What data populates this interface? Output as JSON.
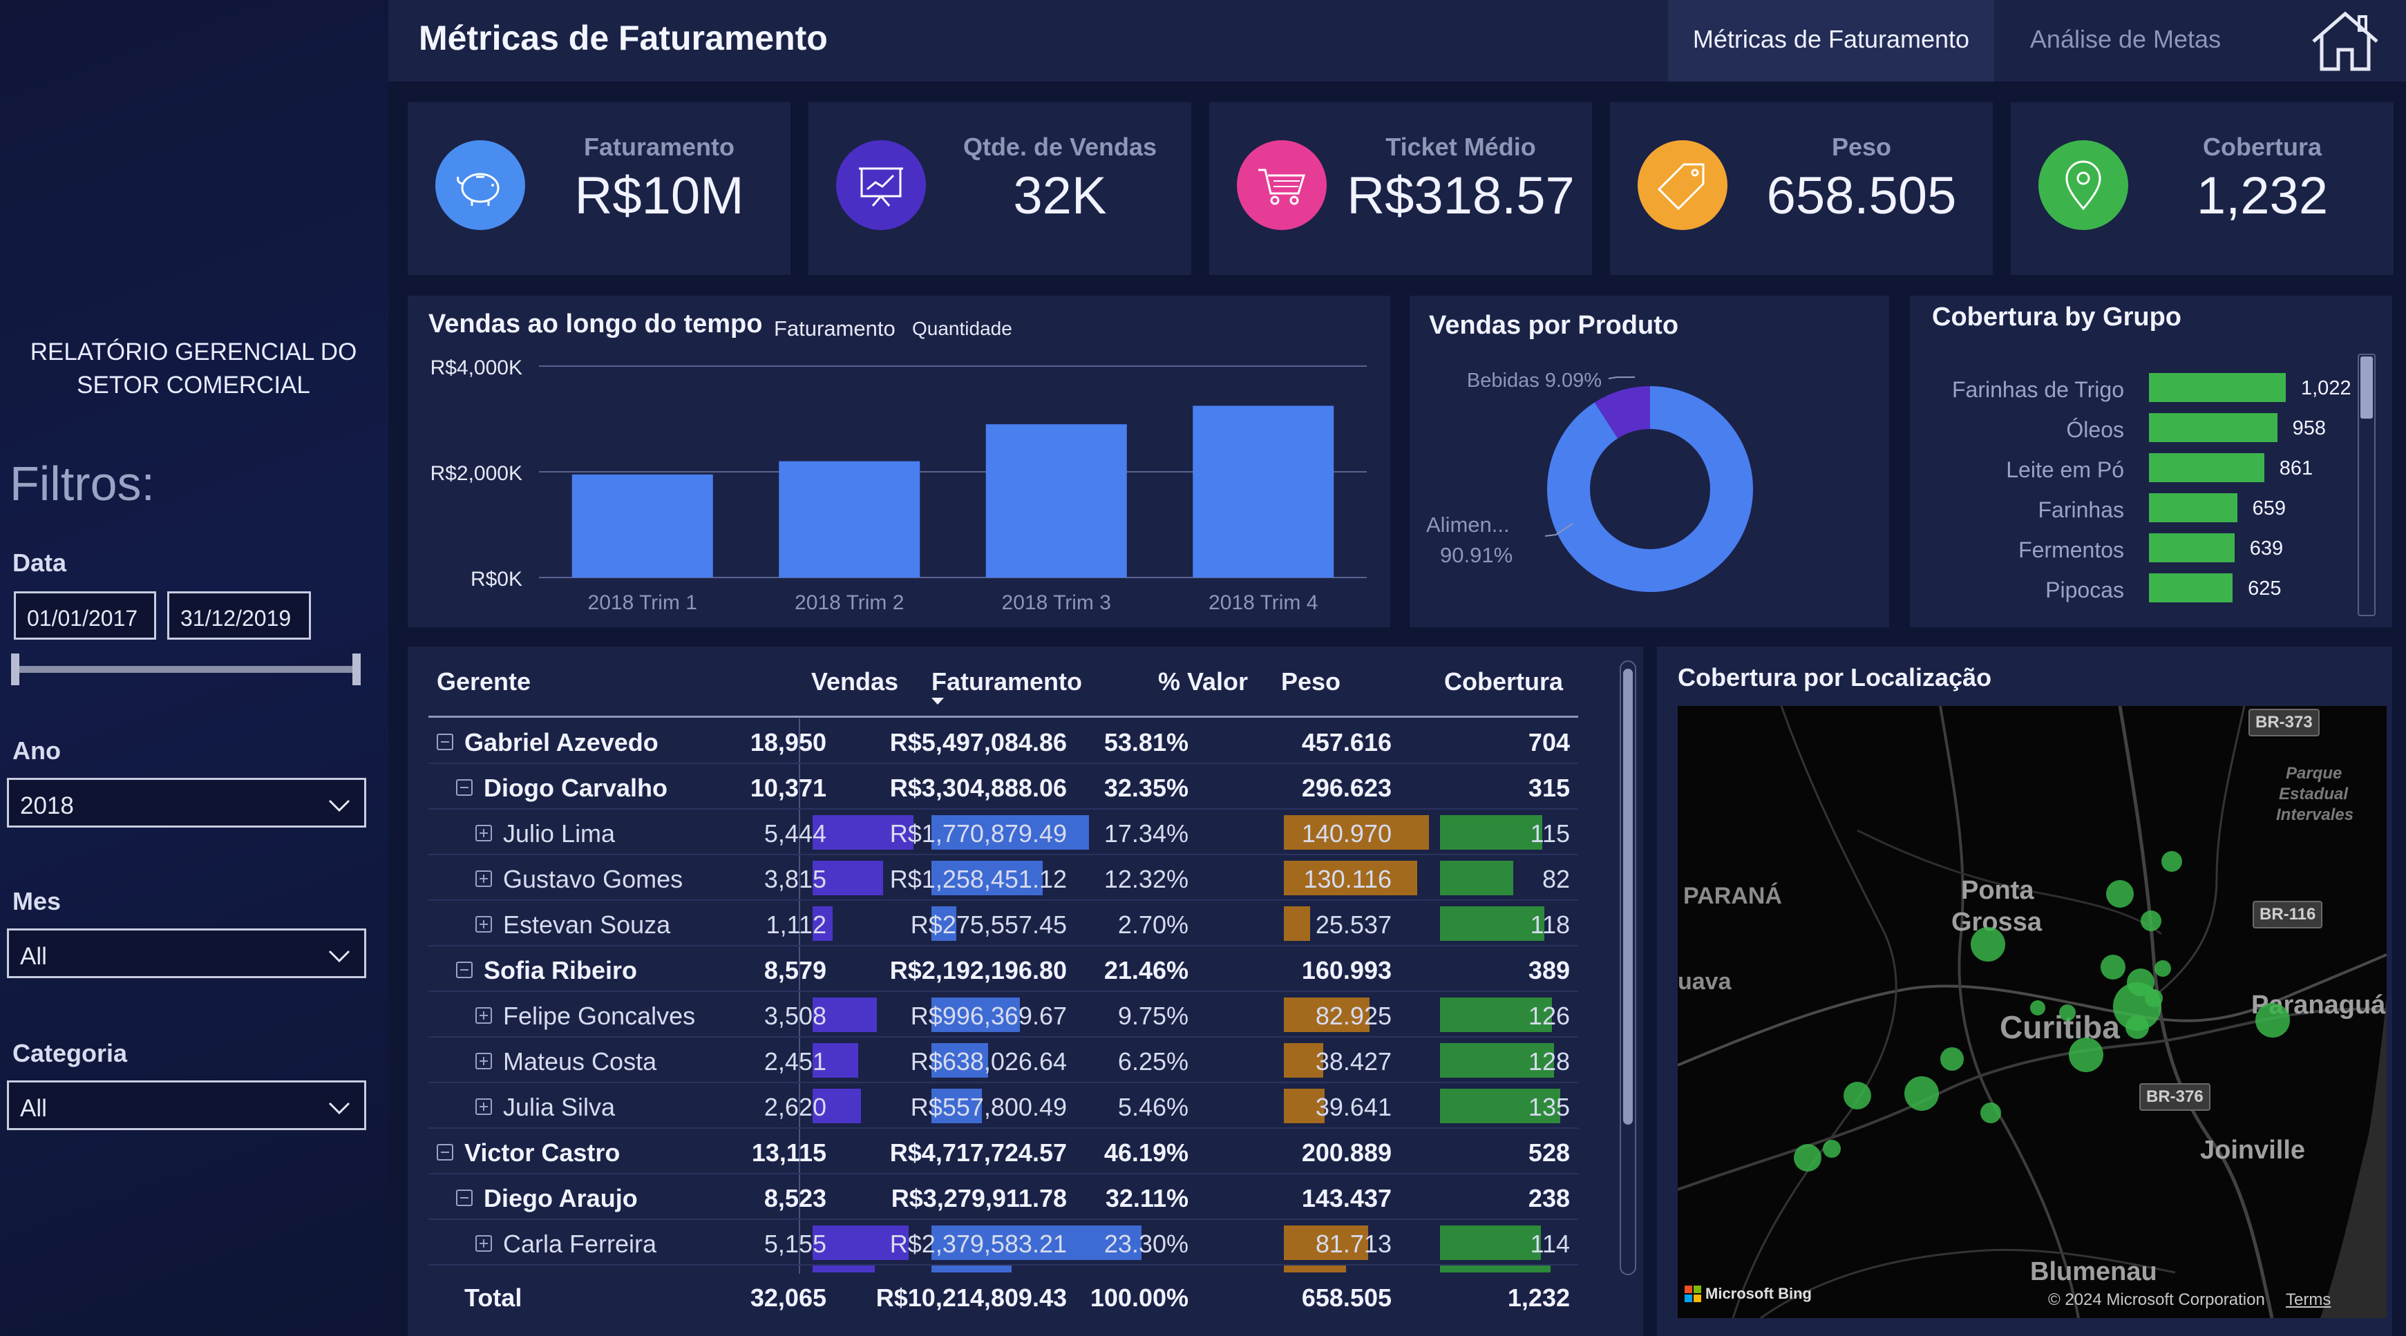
{
  "sidebar": {
    "report_title_line1": "RELATÓRIO GERENCIAL DO",
    "report_title_line2": "SETOR COMERCIAL",
    "filters_title": "Filtros:",
    "data_label": "Data",
    "date_start": "01/01/2017",
    "date_end": "31/12/2019",
    "ano_label": "Ano",
    "ano_value": "2018",
    "mes_label": "Mes",
    "mes_value": "All",
    "categoria_label": "Categoria",
    "categoria_value": "All"
  },
  "header": {
    "title": "Métricas de Faturamento",
    "tabs": [
      "Métricas de Faturamento",
      "Análise de Metas"
    ]
  },
  "kpis": [
    {
      "label": "Faturamento",
      "value": "R$10M",
      "icon": "piggy-bank-icon",
      "color": "#4a8df0"
    },
    {
      "label": "Qtde. de Vendas",
      "value": "32K",
      "icon": "presentation-chart-icon",
      "color": "#4b2fc4"
    },
    {
      "label": "Ticket Médio",
      "value": "R$318.57",
      "icon": "shopping-cart-icon",
      "color": "#e63c96"
    },
    {
      "label": "Peso",
      "value": "658.505",
      "icon": "price-tag-icon",
      "color": "#f2a531"
    },
    {
      "label": "Cobertura",
      "value": "1,232",
      "icon": "location-pin-icon",
      "color": "#3cb44b"
    }
  ],
  "vendas_tempo": {
    "title": "Vendas ao longo do tempo",
    "legend1": "Faturamento",
    "legend2": "Quantidade"
  },
  "chart_data": [
    {
      "type": "bar",
      "title": "Vendas ao longo do tempo",
      "categories": [
        "2018 Trim 1",
        "2018 Trim 2",
        "2018 Trim 3",
        "2018 Trim 4"
      ],
      "values": [
        1950,
        2200,
        2900,
        3250
      ],
      "yticks": [
        "R$0K",
        "R$2,000K",
        "R$4,000K"
      ],
      "ylim": [
        0,
        4000
      ],
      "color": "#4a7ff0"
    },
    {
      "type": "pie",
      "title": "Vendas por Produto",
      "labels": [
        "Bebidas",
        "Alimen..."
      ],
      "label_text": [
        "Bebidas 9.09%",
        "Alimen...",
        "90.91%"
      ],
      "values": [
        9.09,
        90.91
      ],
      "colors": [
        "#5a2fc9",
        "#4a7ff0"
      ]
    },
    {
      "type": "bar",
      "title": "Cobertura by Grupo",
      "categories": [
        "Farinhas de Trigo",
        "Óleos",
        "Leite em Pó",
        "Farinhas",
        "Fermentos",
        "Pipocas"
      ],
      "values": [
        1022,
        958,
        861,
        659,
        639,
        625
      ],
      "value_labels": [
        "1,022",
        "958",
        "861",
        "659",
        "639",
        "625"
      ],
      "color": "#3cb44b"
    }
  ],
  "vendas_produto": {
    "title": "Vendas por Produto"
  },
  "cobertura_grupo": {
    "title": "Cobertura by Grupo"
  },
  "table": {
    "headers": [
      "Gerente",
      "Vendas",
      "Faturamento",
      "% Valor",
      "Peso",
      "Cobertura"
    ],
    "rows": [
      {
        "level": 0,
        "name": "Gabriel Azevedo",
        "vendas": "18,950",
        "fat": "R$5,497,084.86",
        "pct": "53.81%",
        "peso": "457.616",
        "cob": "704"
      },
      {
        "level": 1,
        "name": "Diogo Carvalho",
        "vendas": "10,371",
        "fat": "R$3,304,888.06",
        "pct": "32.35%",
        "peso": "296.623",
        "cob": "315"
      },
      {
        "level": 2,
        "name": "Julio Lima",
        "vendas": "5,444",
        "fat": "R$1,770,879.49",
        "pct": "17.34%",
        "peso": "140.970",
        "cob": "115",
        "bar_vendas": 1.0,
        "bar_fat": 0.75,
        "bar_peso": 1.0,
        "bar_cob": 0.85
      },
      {
        "level": 2,
        "name": "Gustavo Gomes",
        "vendas": "3,815",
        "fat": "R$1,258,451.12",
        "pct": "12.32%",
        "peso": "130.116",
        "cob": "82",
        "bar_vendas": 0.7,
        "bar_fat": 0.53,
        "bar_peso": 0.92,
        "bar_cob": 0.61
      },
      {
        "level": 2,
        "name": "Estevan Souza",
        "vendas": "1,112",
        "fat": "R$275,557.45",
        "pct": "2.70%",
        "peso": "25.537",
        "cob": "118",
        "bar_vendas": 0.2,
        "bar_fat": 0.12,
        "bar_peso": 0.18,
        "bar_cob": 0.87
      },
      {
        "level": 1,
        "name": "Sofia Ribeiro",
        "vendas": "8,579",
        "fat": "R$2,192,196.80",
        "pct": "21.46%",
        "peso": "160.993",
        "cob": "389"
      },
      {
        "level": 2,
        "name": "Felipe Goncalves",
        "vendas": "3,508",
        "fat": "R$996,369.67",
        "pct": "9.75%",
        "peso": "82.925",
        "cob": "126",
        "bar_vendas": 0.64,
        "bar_fat": 0.42,
        "bar_peso": 0.59,
        "bar_cob": 0.93
      },
      {
        "level": 2,
        "name": "Mateus Costa",
        "vendas": "2,451",
        "fat": "R$638,026.64",
        "pct": "6.25%",
        "peso": "38.427",
        "cob": "128",
        "bar_vendas": 0.45,
        "bar_fat": 0.27,
        "bar_peso": 0.27,
        "bar_cob": 0.95
      },
      {
        "level": 2,
        "name": "Julia Silva",
        "vendas": "2,620",
        "fat": "R$557,800.49",
        "pct": "5.46%",
        "peso": "39.641",
        "cob": "135",
        "bar_vendas": 0.48,
        "bar_fat": 0.24,
        "bar_peso": 0.28,
        "bar_cob": 1.0
      },
      {
        "level": 0,
        "name": "Victor Castro",
        "vendas": "13,115",
        "fat": "R$4,717,724.57",
        "pct": "46.19%",
        "peso": "200.889",
        "cob": "528"
      },
      {
        "level": 1,
        "name": "Diego Araujo",
        "vendas": "8,523",
        "fat": "R$3,279,911.78",
        "pct": "32.11%",
        "peso": "143.437",
        "cob": "238"
      },
      {
        "level": 2,
        "name": "Carla Ferreira",
        "vendas": "5,155",
        "fat": "R$2,379,583.21",
        "pct": "23.30%",
        "peso": "81.713",
        "cob": "114",
        "bar_vendas": 0.95,
        "bar_fat": 1.0,
        "bar_peso": 0.58,
        "bar_cob": 0.84
      }
    ],
    "total": {
      "name": "Total",
      "vendas": "32,065",
      "fat": "R$10,214,809.43",
      "pct": "100.00%",
      "peso": "658.505",
      "cob": "1,232"
    }
  },
  "map": {
    "title": "Cobertura por Localização",
    "labels": [
      "PARANÁ",
      "Ponta",
      "Grossa",
      "Curitiba",
      "Paranaguá",
      "Joinville",
      "Blumenau",
      "uava",
      "Parque",
      "Estadual",
      "Intervales"
    ],
    "shields": [
      "BR-373",
      "BR-116",
      "BR-376"
    ],
    "attribution": "© 2024 Microsoft Corporation",
    "terms": "Terms",
    "bing": "Microsoft Bing"
  }
}
